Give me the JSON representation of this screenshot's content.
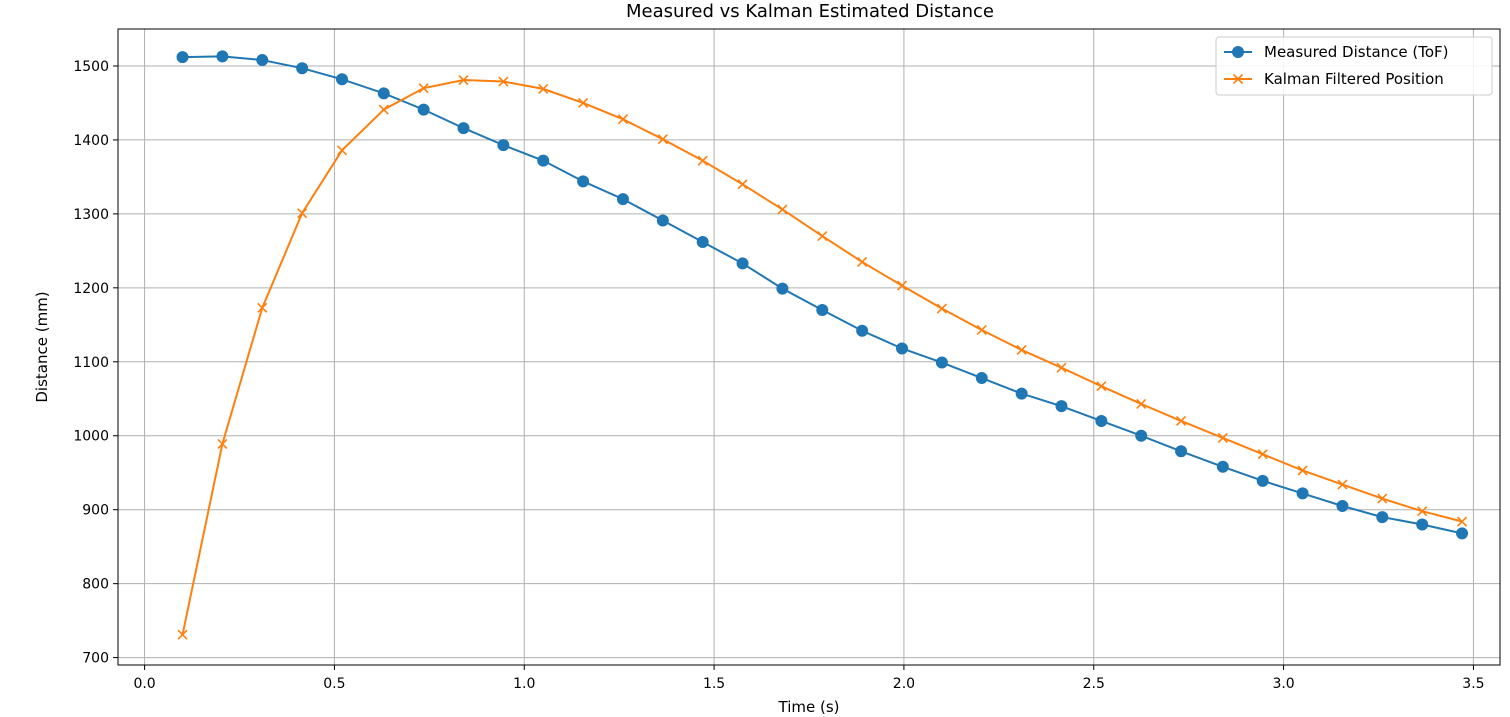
{
  "chart_data": {
    "type": "line",
    "title": "Measured vs Kalman Estimated Distance",
    "xlabel": "Time (s)",
    "ylabel": "Distance (mm)",
    "xlim": [
      -0.07,
      3.57
    ],
    "ylim": [
      690,
      1550
    ],
    "xticks": [
      0.0,
      0.5,
      1.0,
      1.5,
      2.0,
      2.5,
      3.0,
      3.5
    ],
    "yticks": [
      700,
      800,
      900,
      1000,
      1100,
      1200,
      1300,
      1400,
      1500
    ],
    "grid": true,
    "legend_position": "top-right",
    "series": [
      {
        "name": "Measured Distance (ToF)",
        "color": "#1f77b4",
        "marker": "circle",
        "x": [
          0.1,
          0.205,
          0.31,
          0.415,
          0.52,
          0.63,
          0.735,
          0.84,
          0.945,
          1.05,
          1.155,
          1.26,
          1.365,
          1.47,
          1.575,
          1.68,
          1.785,
          1.89,
          1.995,
          2.1,
          2.205,
          2.31,
          2.415,
          2.52,
          2.625,
          2.73,
          2.84,
          2.945,
          3.05,
          3.155,
          3.26,
          3.365,
          3.47
        ],
        "y": [
          1512,
          1513,
          1508,
          1497,
          1482,
          1463,
          1441,
          1416,
          1393,
          1372,
          1344,
          1320,
          1291,
          1262,
          1233,
          1199,
          1170,
          1142,
          1118,
          1099,
          1078,
          1057,
          1040,
          1020,
          1000,
          979,
          958,
          939,
          922,
          905,
          890,
          880,
          868
        ]
      },
      {
        "name": "Kalman Filtered Position",
        "color": "#ff7f0e",
        "marker": "x",
        "x": [
          0.1,
          0.205,
          0.31,
          0.415,
          0.52,
          0.63,
          0.735,
          0.84,
          0.945,
          1.05,
          1.155,
          1.26,
          1.365,
          1.47,
          1.575,
          1.68,
          1.785,
          1.89,
          1.995,
          2.1,
          2.205,
          2.31,
          2.415,
          2.52,
          2.625,
          2.73,
          2.84,
          2.945,
          3.05,
          3.155,
          3.26,
          3.365,
          3.47
        ],
        "y": [
          731,
          989,
          1173,
          1301,
          1386,
          1441,
          1470,
          1481,
          1479,
          1469,
          1450,
          1428,
          1401,
          1372,
          1340,
          1306,
          1270,
          1235,
          1203,
          1172,
          1143,
          1116,
          1092,
          1067,
          1043,
          1020,
          997,
          975,
          953,
          934,
          915,
          898,
          884
        ]
      }
    ]
  }
}
